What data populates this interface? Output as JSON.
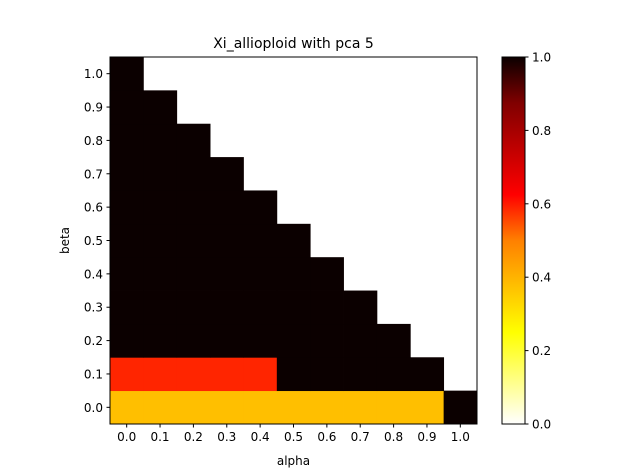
{
  "chart_data": {
    "type": "heatmap",
    "title": "Xi_allioploid with pca 5",
    "xlabel": "alpha",
    "ylabel": "beta",
    "x": [
      0.0,
      0.1,
      0.2,
      0.3,
      0.4,
      0.5,
      0.6,
      0.7,
      0.8,
      0.9,
      1.0
    ],
    "y": [
      0.0,
      0.1,
      0.2,
      0.3,
      0.4,
      0.5,
      0.6,
      0.7,
      0.8,
      0.9,
      1.0
    ],
    "x_tick_labels": [
      "0.0",
      "0.1",
      "0.2",
      "0.3",
      "0.4",
      "0.5",
      "0.6",
      "0.7",
      "0.8",
      "0.9",
      "1.0"
    ],
    "y_tick_labels": [
      "0.0",
      "0.1",
      "0.2",
      "0.3",
      "0.4",
      "0.5",
      "0.6",
      "0.7",
      "0.8",
      "0.9",
      "1.0"
    ],
    "values": [
      [
        0.35,
        0.35,
        0.35,
        0.35,
        0.35,
        0.35,
        0.35,
        0.35,
        0.35,
        0.35,
        1.0
      ],
      [
        0.58,
        0.58,
        0.58,
        0.58,
        0.58,
        1.0,
        1.0,
        1.0,
        1.0,
        1.0,
        null
      ],
      [
        1.0,
        1.0,
        1.0,
        1.0,
        1.0,
        1.0,
        1.0,
        1.0,
        1.0,
        null,
        null
      ],
      [
        1.0,
        1.0,
        1.0,
        1.0,
        1.0,
        1.0,
        1.0,
        1.0,
        null,
        null,
        null
      ],
      [
        1.0,
        1.0,
        1.0,
        1.0,
        1.0,
        1.0,
        1.0,
        null,
        null,
        null,
        null
      ],
      [
        1.0,
        1.0,
        1.0,
        1.0,
        1.0,
        1.0,
        null,
        null,
        null,
        null,
        null
      ],
      [
        1.0,
        1.0,
        1.0,
        1.0,
        1.0,
        null,
        null,
        null,
        null,
        null,
        null
      ],
      [
        1.0,
        1.0,
        1.0,
        1.0,
        null,
        null,
        null,
        null,
        null,
        null,
        null
      ],
      [
        1.0,
        1.0,
        1.0,
        null,
        null,
        null,
        null,
        null,
        null,
        null,
        null
      ],
      [
        1.0,
        1.0,
        null,
        null,
        null,
        null,
        null,
        null,
        null,
        null,
        null
      ],
      [
        1.0,
        null,
        null,
        null,
        null,
        null,
        null,
        null,
        null,
        null,
        null
      ]
    ],
    "colormap": "hot_r",
    "colorbar": {
      "range": [
        0.0,
        1.0
      ],
      "ticks": [
        0.0,
        0.2,
        0.4,
        0.6,
        0.8,
        1.0
      ],
      "tick_labels": [
        "0.0",
        "0.2",
        "0.4",
        "0.6",
        "0.8",
        "1.0"
      ]
    },
    "grid": false,
    "legend": "none"
  }
}
